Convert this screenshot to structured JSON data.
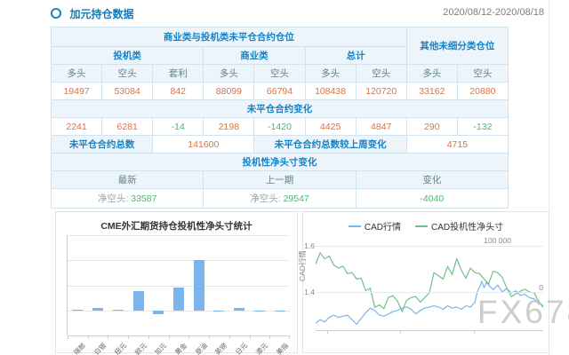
{
  "page": {
    "title": "加元持仓数据",
    "date_range": "2020/08/12-2020/08/18",
    "watermark": "FX678"
  },
  "table": {
    "group_header": {
      "main": "商业类与投机类未平仓合约仓位",
      "other": "其他未细分类仓位"
    },
    "subgroups": [
      "投机类",
      "商业类",
      "总计"
    ],
    "col_headers": [
      "多头",
      "空头",
      "套利",
      "多头",
      "空头",
      "多头",
      "空头",
      "多头",
      "空头"
    ],
    "positions": [
      "19497",
      "53084",
      "842",
      "88099",
      "66794",
      "108438",
      "120720",
      "33162",
      "20880"
    ],
    "change_section_title": "未平仓合约变化",
    "changes": [
      "2241",
      "6281",
      "-14",
      "2198",
      "-1420",
      "4425",
      "4847",
      "290",
      "-132"
    ],
    "totals": {
      "label_total": "未平仓合约总数",
      "total": "141600",
      "label_change": "未平仓合约总数较上周变化",
      "change": "4715"
    },
    "net_section_title": "投机性净头寸变化",
    "net_headers": [
      "最新",
      "上一期",
      "变化"
    ],
    "net_latest_label": "净空头:",
    "net_latest": "33587",
    "net_prev_label": "净空头:",
    "net_prev": "29547",
    "net_change": "-4040"
  },
  "chart_data": [
    {
      "type": "bar",
      "title": "CME外汇期货持仓投机性净头寸统计",
      "categories": [
        "瑞郎",
        "白银",
        "纽元",
        "欧元",
        "加元",
        "黄金",
        "原油",
        "英镑",
        "日元",
        "澳元",
        "美指"
      ],
      "values": [
        8000,
        28000,
        2000,
        190000,
        -33587,
        225000,
        500000,
        -3000,
        20000,
        -2000,
        -8000
      ],
      "xlabel": "",
      "ylabel": "",
      "ylim": [
        -250000,
        750000
      ],
      "gridline_step": 250000,
      "grid": true,
      "legend_position": "none",
      "bar_color": "#7cb5ec"
    },
    {
      "type": "line",
      "title": "",
      "legend": [
        "CAD行情",
        "CAD投机性净头寸"
      ],
      "legend_position": "top",
      "ylabel_left": "CAD行情",
      "yticks_left": [
        "1.6",
        "1.4"
      ],
      "yticks_right": [
        "100 000",
        "0"
      ],
      "ylim_left": [
        1.235,
        1.65
      ],
      "ylim_right": [
        -82700,
        125000
      ],
      "grid": true,
      "series": [
        {
          "name": "CAD行情",
          "axis": "left",
          "color": "#7cb5ec",
          "x": [
            0,
            2,
            4,
            6,
            8,
            10,
            12,
            14,
            16,
            18,
            20,
            22,
            24,
            26,
            28,
            30,
            32,
            34,
            36,
            38,
            40,
            42,
            44,
            46,
            48,
            50,
            52,
            54,
            56,
            58,
            60,
            62,
            64,
            66,
            68,
            70,
            71,
            72,
            73,
            74,
            75,
            76,
            78,
            80,
            82,
            84,
            86,
            88,
            90,
            92,
            94,
            96,
            98,
            100
          ],
          "y": [
            1.265,
            1.28,
            1.27,
            1.29,
            1.3,
            1.29,
            1.295,
            1.3,
            1.28,
            1.26,
            1.285,
            1.31,
            1.33,
            1.32,
            1.3,
            1.295,
            1.305,
            1.315,
            1.32,
            1.33,
            1.335,
            1.325,
            1.305,
            1.32,
            1.33,
            1.335,
            1.34,
            1.335,
            1.325,
            1.34,
            1.33,
            1.335,
            1.325,
            1.34,
            1.335,
            1.355,
            1.4,
            1.42,
            1.445,
            1.42,
            1.44,
            1.43,
            1.41,
            1.43,
            1.4,
            1.415,
            1.395,
            1.405,
            1.385,
            1.39,
            1.375,
            1.37,
            1.355,
            1.34
          ]
        },
        {
          "name": "CAD投机性净头寸",
          "axis": "right",
          "color": "#72bf8e",
          "x": [
            0,
            2,
            4,
            6,
            8,
            10,
            12,
            14,
            16,
            18,
            20,
            22,
            24,
            26,
            28,
            30,
            32,
            34,
            36,
            38,
            40,
            42,
            44,
            46,
            48,
            50,
            52,
            54,
            56,
            58,
            60,
            62,
            64,
            66,
            68,
            70,
            72,
            74,
            76,
            78,
            80,
            82,
            84,
            86,
            88,
            90,
            92,
            94,
            96,
            98,
            100
          ],
          "y": [
            60000,
            85000,
            72000,
            78000,
            58000,
            52000,
            56000,
            40000,
            42000,
            28000,
            30000,
            3000,
            8000,
            -33000,
            -28000,
            -36000,
            -12000,
            -8000,
            -20000,
            -42000,
            -18000,
            -12000,
            -10000,
            -22000,
            -12000,
            -2000,
            42000,
            35000,
            28000,
            55000,
            38000,
            72000,
            48000,
            30000,
            52000,
            42000,
            40000,
            28000,
            18000,
            45000,
            42000,
            32000,
            8000,
            -10000,
            -4000,
            2000,
            6000,
            0,
            -2000,
            -20000,
            -33587
          ]
        }
      ]
    }
  ],
  "colors": {
    "accent_blue": "#1583c5",
    "value_orange": "#e0713d",
    "value_green": "#4cb578",
    "bar_blue": "#7cb5ec",
    "line_blue": "#7cb5ec",
    "line_green": "#72bf8e",
    "table_border": "#cfe3f1",
    "header_bg": "#edf5fb"
  }
}
